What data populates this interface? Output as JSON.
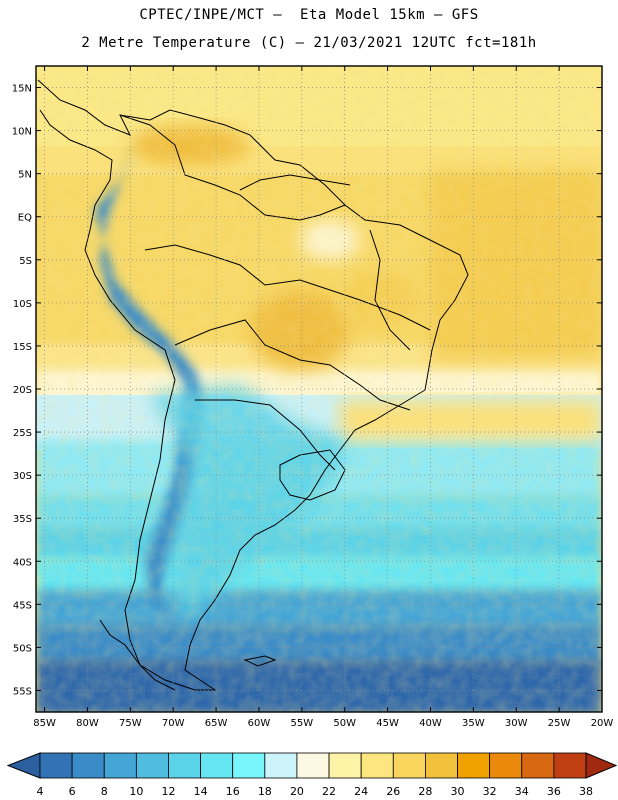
{
  "title_line1": "CPTEC/INPE/MCT –  Eta Model 15km – GFS",
  "title_line2": "2 Metre Temperature (C) – 21/03/2021 12UTC fct=181h",
  "map": {
    "region": "South America",
    "lat_labels": [
      "15N",
      "10N",
      "5N",
      "EQ",
      "5S",
      "10S",
      "15S",
      "20S",
      "25S",
      "30S",
      "35S",
      "40S",
      "45S",
      "50S",
      "55S"
    ],
    "lon_labels": [
      "85W",
      "80W",
      "75W",
      "70W",
      "65W",
      "60W",
      "55W",
      "50W",
      "45W",
      "40W",
      "35W",
      "30W",
      "25W",
      "20W"
    ],
    "lat_values": [
      15,
      10,
      5,
      0,
      -5,
      -10,
      -15,
      -20,
      -25,
      -30,
      -35,
      -40,
      -45,
      -50,
      -55
    ],
    "lon_values": [
      -85,
      -80,
      -75,
      -70,
      -65,
      -60,
      -55,
      -50,
      -45,
      -40,
      -35,
      -30,
      -25,
      -20
    ],
    "lat_range": [
      -57.5,
      17.5
    ],
    "lon_range": [
      -86,
      -20
    ],
    "grid": "dotted"
  },
  "colorbar": {
    "labels": [
      "4",
      "6",
      "8",
      "10",
      "12",
      "14",
      "16",
      "18",
      "20",
      "22",
      "24",
      "26",
      "28",
      "30",
      "32",
      "34",
      "36",
      "38"
    ],
    "colors": [
      "#2c5fa0",
      "#3273b6",
      "#3a8cc8",
      "#45a6d6",
      "#50bcdf",
      "#5ad2e8",
      "#66e6f2",
      "#78f6fb",
      "#cdf3fb",
      "#fdf8e4",
      "#fdf3a6",
      "#fbe680",
      "#f8d65e",
      "#f2c13b",
      "#f0a300",
      "#ea8a0c",
      "#d96812",
      "#bf3f12",
      "#a02a10"
    ],
    "unit": "C"
  }
}
